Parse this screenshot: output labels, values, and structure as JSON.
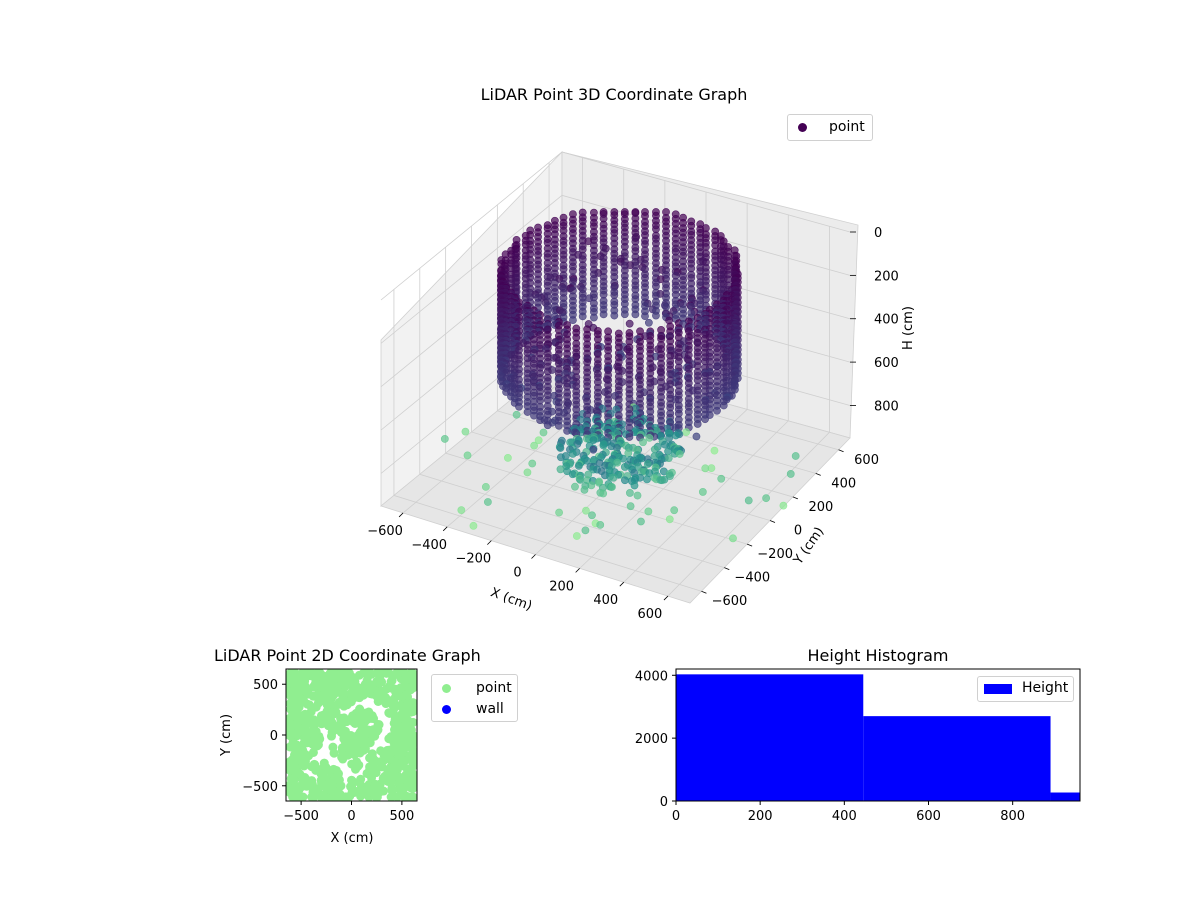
{
  "chart_data": [
    {
      "type": "scatter",
      "projection": "3d",
      "title": "LiDAR Point 3D Coordinate Graph",
      "xlabel": "X (cm)",
      "ylabel": "Y (cm)",
      "zlabel": "H (cm)",
      "xlim": [
        -700,
        700
      ],
      "ylim": [
        -700,
        700
      ],
      "zlim": [
        950,
        0
      ],
      "z_inverted": true,
      "x_ticks": [
        "−600",
        "−400",
        "−200",
        "0",
        "200",
        "400",
        "600"
      ],
      "y_ticks": [
        "−600",
        "−400",
        "−200",
        "0",
        "200",
        "400",
        "600"
      ],
      "z_ticks": [
        "0",
        "200",
        "400",
        "600",
        "800"
      ],
      "colormap": "viridis (colored by height: low points light green, high points dark purple)",
      "grid": true,
      "legend": {
        "placement": "top-right",
        "entries": [
          {
            "name": "point",
            "color": "#440154"
          }
        ]
      },
      "series": [
        {
          "name": "point",
          "description": "ring of vertical point columns along a circular wall of radius ~480 cm from H 0 to ~500 cm, a dense cluster near the center at H ~800–900 cm, and scattered points near floor level",
          "ring_radius": 480,
          "ring_height_range": [
            0,
            500
          ],
          "ring_columns": 70,
          "inner_cluster_height_range": [
            780,
            900
          ]
        }
      ]
    },
    {
      "type": "scatter",
      "title": "LiDAR Point 2D Coordinate Graph",
      "xlabel": "X (cm)",
      "ylabel": "Y (cm)",
      "xlim": [
        -650,
        650
      ],
      "ylim": [
        -650,
        650
      ],
      "x_ticks": [
        "−500",
        "0",
        "500"
      ],
      "y_ticks": [
        "−500",
        "0",
        "500"
      ],
      "legend": {
        "placement": "outside-right",
        "entries": [
          {
            "name": "point",
            "color": "#90ee90"
          },
          {
            "name": "wall",
            "color": "#0000ff"
          }
        ]
      },
      "series": [
        {
          "name": "point",
          "color": "#90ee90",
          "description": "dense light-green points filling the area, with white gaps around an irregular central region"
        },
        {
          "name": "wall",
          "color": "#0000ff",
          "values": []
        }
      ]
    },
    {
      "type": "bar",
      "subtype": "histogram",
      "title": "Height Histogram",
      "xlim": [
        0,
        960
      ],
      "ylim": [
        0,
        4200
      ],
      "x_ticks": [
        "0",
        "200",
        "400",
        "600",
        "800"
      ],
      "y_ticks": [
        "0",
        "2000",
        "4000"
      ],
      "bins": [
        {
          "start": 0,
          "end": 445,
          "count": 4030
        },
        {
          "start": 445,
          "end": 890,
          "count": 2700
        },
        {
          "start": 890,
          "end": 960,
          "count": 270
        }
      ],
      "color": "#0000ff",
      "legend": {
        "placement": "top-right",
        "entries": [
          {
            "name": "Height",
            "color": "#0000ff"
          }
        ]
      }
    }
  ]
}
